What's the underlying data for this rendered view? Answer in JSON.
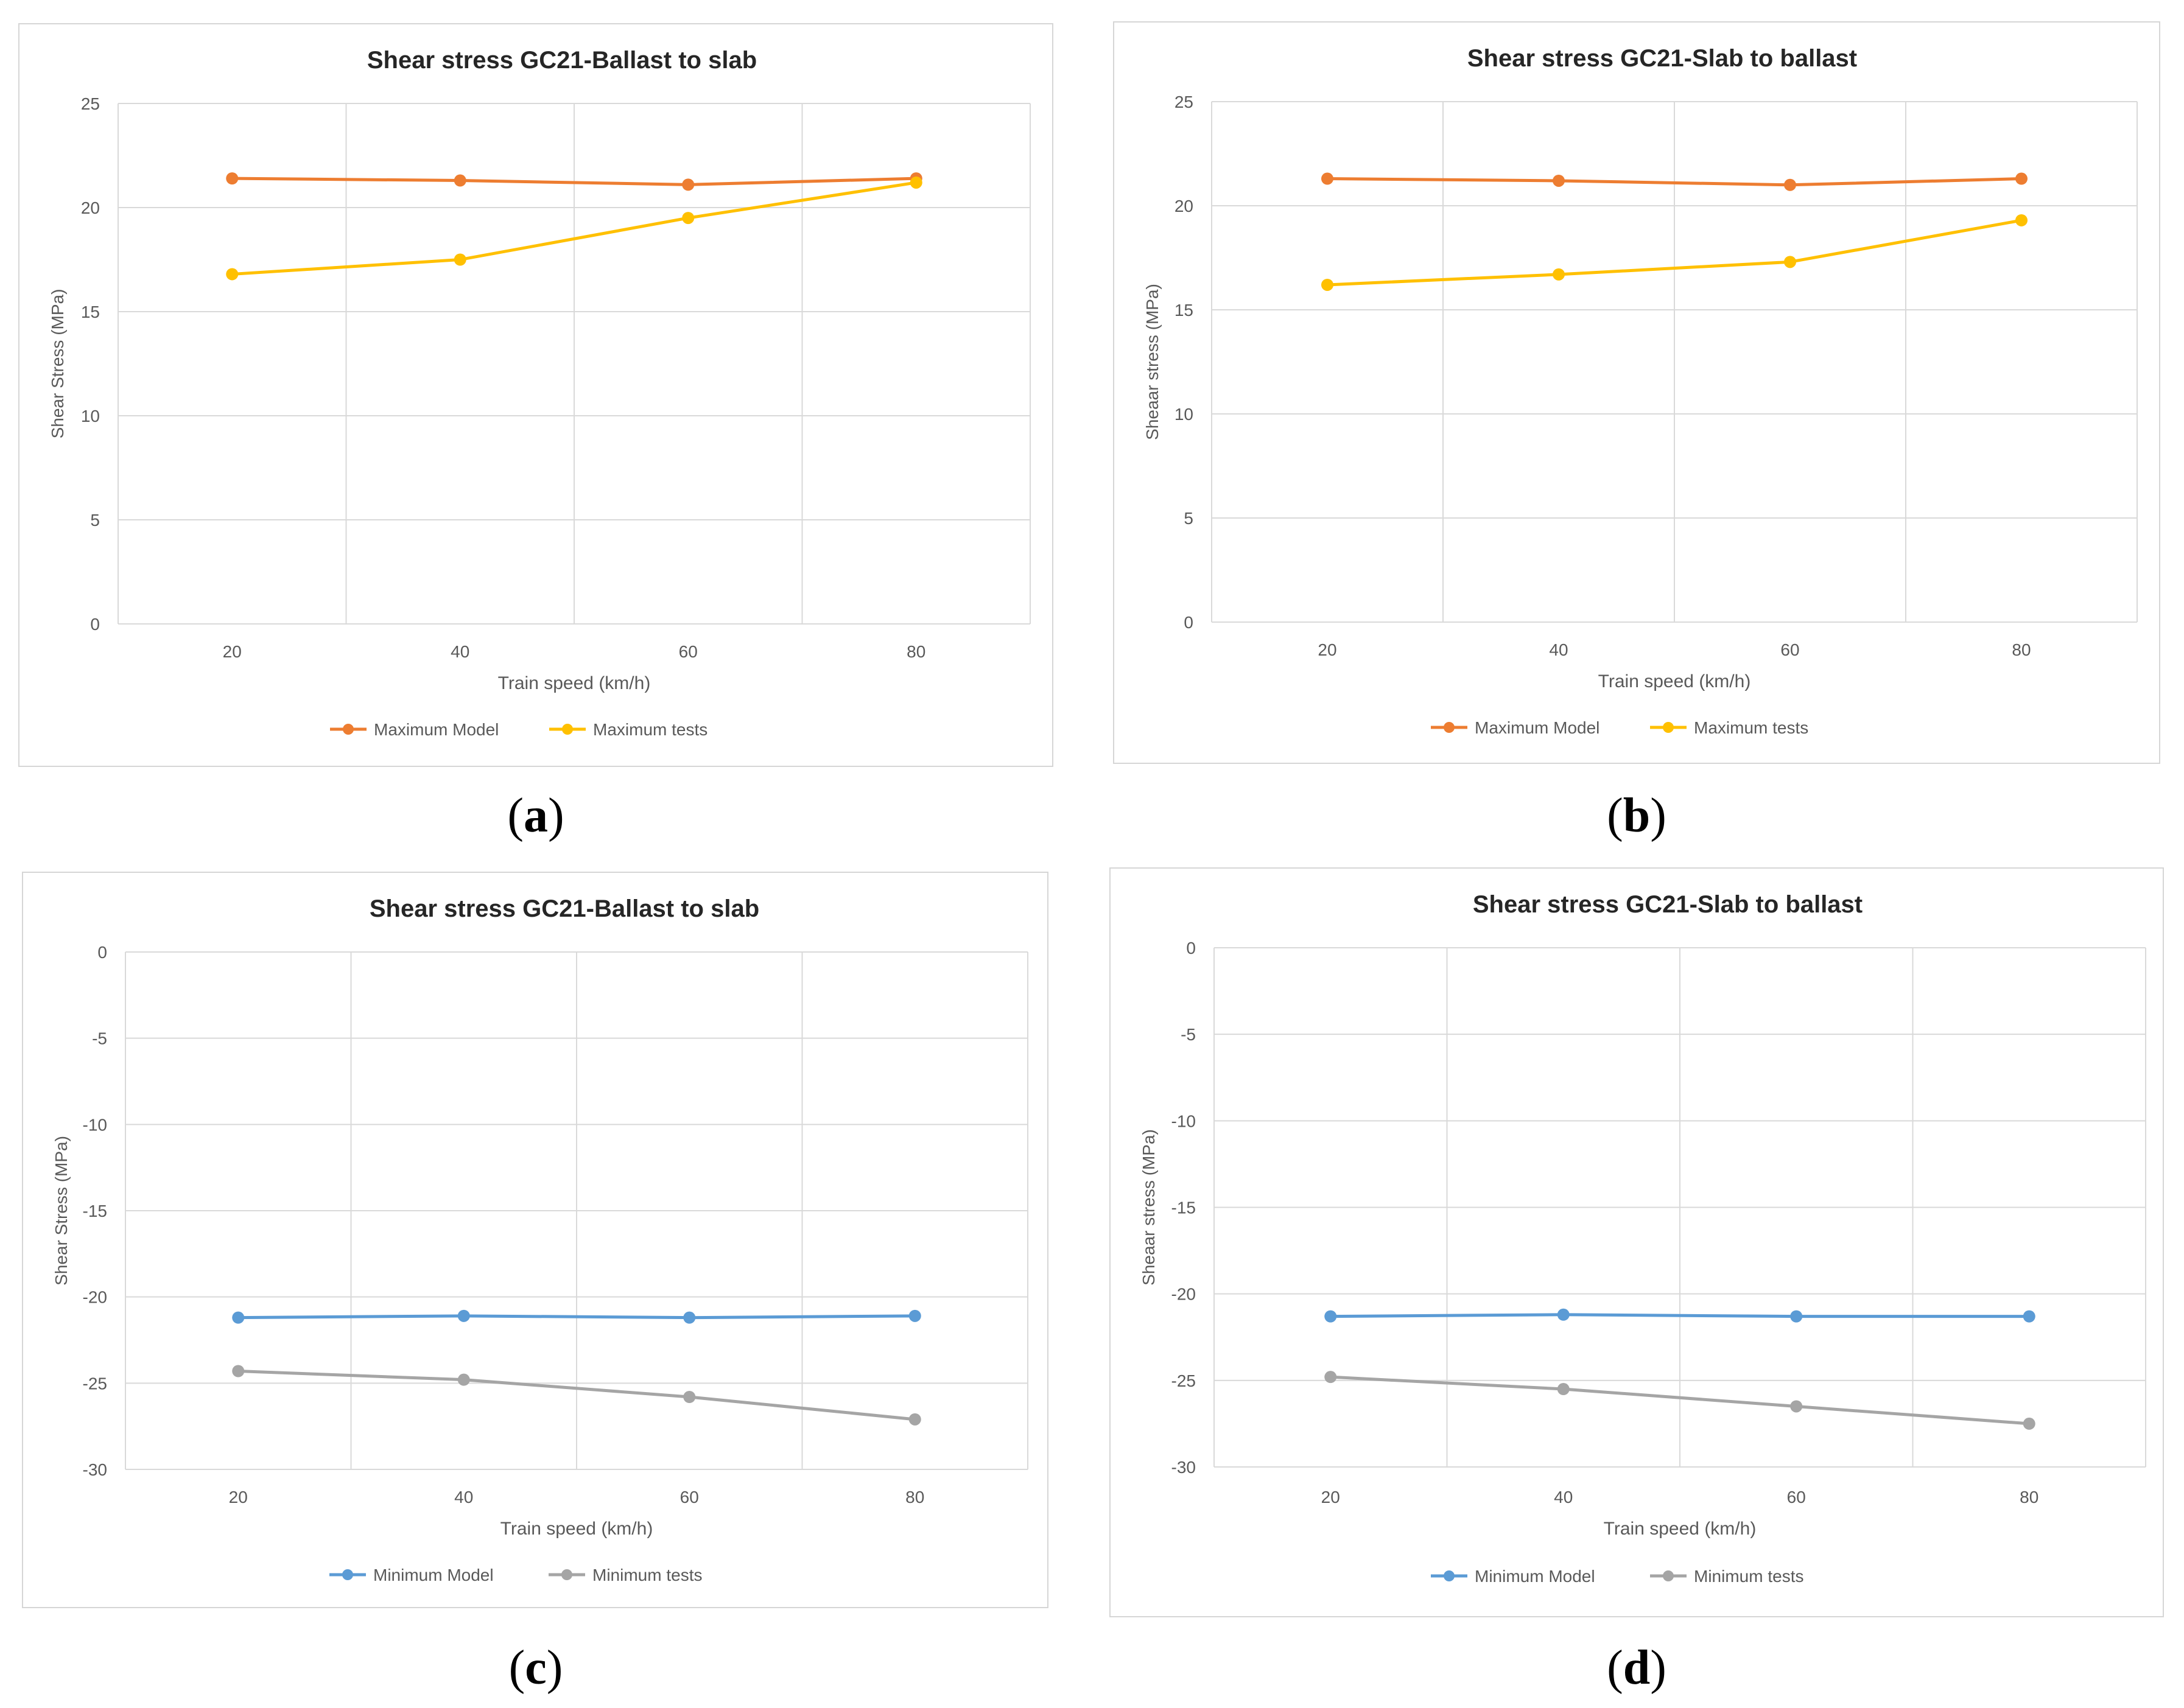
{
  "colors": {
    "max_model": "#ED7D31",
    "max_tests": "#FFC000",
    "min_model": "#5B9BD5",
    "min_tests": "#A5A5A5",
    "grid": "#d9d9d9",
    "tick_text": "#595959",
    "title_text": "#262626"
  },
  "chart_data": [
    {
      "id": "a",
      "caption": "a",
      "type": "line",
      "title": "Shear stress GC21-Ballast to slab",
      "xlabel": "Train speed (km/h)",
      "ylabel": "Shear Stress (MPa)",
      "categories": [
        "20",
        "40",
        "60",
        "80"
      ],
      "ylim": [
        0,
        25
      ],
      "yticks": [
        "0",
        "5",
        "10",
        "15",
        "20",
        "25"
      ],
      "series": [
        {
          "name": "Maximum Model",
          "color_key": "max_model",
          "values": [
            21.4,
            21.3,
            21.1,
            21.4
          ]
        },
        {
          "name": "Maximum tests",
          "color_key": "max_tests",
          "values": [
            16.8,
            17.5,
            19.5,
            21.2
          ]
        }
      ]
    },
    {
      "id": "b",
      "caption": "b",
      "type": "line",
      "title": "Shear stress GC21-Slab to ballast",
      "xlabel": "Train speed (km/h)",
      "ylabel": "Sheaar stress (MPa)",
      "categories": [
        "20",
        "40",
        "60",
        "80"
      ],
      "ylim": [
        0,
        25
      ],
      "yticks": [
        "0",
        "5",
        "10",
        "15",
        "20",
        "25"
      ],
      "series": [
        {
          "name": "Maximum Model",
          "color_key": "max_model",
          "values": [
            21.3,
            21.2,
            21.0,
            21.3
          ]
        },
        {
          "name": "Maximum tests",
          "color_key": "max_tests",
          "values": [
            16.2,
            16.7,
            17.3,
            19.3
          ]
        }
      ]
    },
    {
      "id": "c",
      "caption": "c",
      "type": "line",
      "title": "Shear stress GC21-Ballast to slab",
      "xlabel": "Train speed (km/h)",
      "ylabel": "Shear Stress (MPa)",
      "categories": [
        "20",
        "40",
        "60",
        "80"
      ],
      "ylim": [
        -30,
        0
      ],
      "yticks": [
        "-30",
        "-25",
        "-20",
        "-15",
        "-10",
        "-5",
        "0"
      ],
      "series": [
        {
          "name": "Minimum Model",
          "color_key": "min_model",
          "values": [
            -21.2,
            -21.1,
            -21.2,
            -21.1
          ]
        },
        {
          "name": "Minimum tests",
          "color_key": "min_tests",
          "values": [
            -24.3,
            -24.8,
            -25.8,
            -27.1
          ]
        }
      ]
    },
    {
      "id": "d",
      "caption": "d",
      "type": "line",
      "title": "Shear stress GC21-Slab to ballast",
      "xlabel": "Train speed (km/h)",
      "ylabel": "Sheaar stress (MPa)",
      "categories": [
        "20",
        "40",
        "60",
        "80"
      ],
      "ylim": [
        -30,
        0
      ],
      "yticks": [
        "-30",
        "-25",
        "-20",
        "-15",
        "-10",
        "-5",
        "0"
      ],
      "series": [
        {
          "name": "Minimum Model",
          "color_key": "min_model",
          "values": [
            -21.3,
            -21.2,
            -21.3,
            -21.3
          ]
        },
        {
          "name": "Minimum tests",
          "color_key": "min_tests",
          "values": [
            -24.8,
            -25.5,
            -26.5,
            -27.5
          ]
        }
      ]
    }
  ]
}
